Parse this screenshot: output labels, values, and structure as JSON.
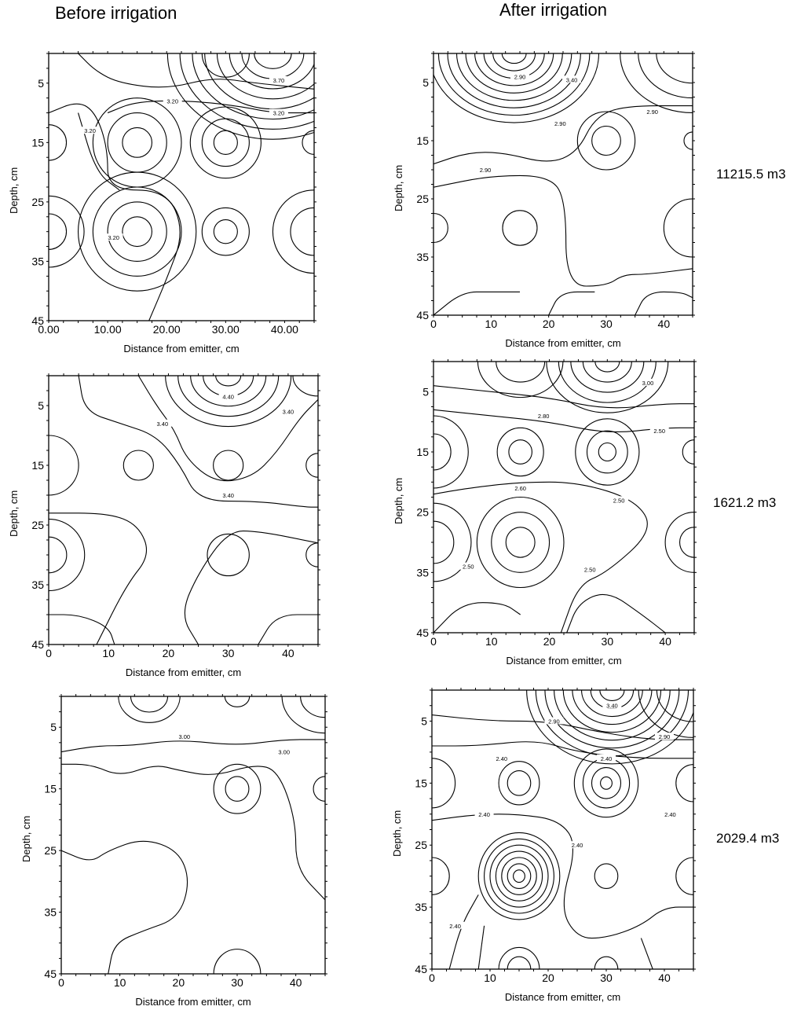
{
  "headers": {
    "before": "Before irrigation",
    "after": "After irrigation"
  },
  "row_labels": [
    "11215.5 m3",
    "1621.2 m3",
    "2029.4 m3"
  ],
  "chart_data": [
    {
      "type": "contour",
      "row": 0,
      "column": "before",
      "xlabel": "Distance from emitter, cm",
      "ylabel": "Depth, cm",
      "xlim": [
        0,
        45
      ],
      "ylim": [
        45,
        0
      ],
      "xticks": [
        "0.00",
        "10.00",
        "20.00",
        "30.00",
        "40.00"
      ],
      "xtick_values": [
        0,
        10,
        20,
        30,
        40
      ],
      "yticks": [
        "5",
        "15",
        "25",
        "35",
        "45"
      ],
      "ytick_values": [
        5,
        15,
        25,
        35,
        45
      ],
      "contour_labels": [
        {
          "text": "3.70",
          "x": 39,
          "y": 4.5
        },
        {
          "text": "3.20",
          "x": 21,
          "y": 8
        },
        {
          "text": "3.20",
          "x": 39,
          "y": 10
        },
        {
          "text": "3.20",
          "x": 7,
          "y": 13
        },
        {
          "text": "3.20",
          "x": 11,
          "y": 31
        }
      ]
    },
    {
      "type": "contour",
      "row": 0,
      "column": "after",
      "xlabel": "Distance from emitter, cm",
      "ylabel": "Depth, cm",
      "xlim": [
        0,
        45
      ],
      "ylim": [
        45,
        0
      ],
      "xticks": [
        "0",
        "10",
        "20",
        "30",
        "40"
      ],
      "xtick_values": [
        0,
        10,
        20,
        30,
        40
      ],
      "yticks": [
        "5",
        "15",
        "25",
        "35",
        "45"
      ],
      "ytick_values": [
        5,
        15,
        25,
        35,
        45
      ],
      "contour_labels": [
        {
          "text": "2.90",
          "x": 15,
          "y": 4
        },
        {
          "text": "3.40",
          "x": 24,
          "y": 4.5
        },
        {
          "text": "2.90",
          "x": 38,
          "y": 10
        },
        {
          "text": "2.90",
          "x": 22,
          "y": 12
        },
        {
          "text": "2.90",
          "x": 9,
          "y": 20
        }
      ]
    },
    {
      "type": "contour",
      "row": 1,
      "column": "before",
      "xlabel": "Distance from emitter, cm",
      "ylabel": "Depth, cm",
      "xlim": [
        0,
        45
      ],
      "ylim": [
        45,
        0
      ],
      "xticks": [
        "0",
        "10",
        "20",
        "30",
        "40"
      ],
      "xtick_values": [
        0,
        10,
        20,
        30,
        40
      ],
      "yticks": [
        "5",
        "15",
        "25",
        "35",
        "45"
      ],
      "ytick_values": [
        5,
        15,
        25,
        35,
        45
      ],
      "contour_labels": [
        {
          "text": "4.40",
          "x": 30,
          "y": 3.5
        },
        {
          "text": "3.40",
          "x": 40,
          "y": 6
        },
        {
          "text": "3.40",
          "x": 19,
          "y": 8
        },
        {
          "text": "3.40",
          "x": 30,
          "y": 20
        }
      ]
    },
    {
      "type": "contour",
      "row": 1,
      "column": "after",
      "xlabel": "Distance from emitter, cm",
      "ylabel": "Depth, cm",
      "xlim": [
        0,
        45
      ],
      "ylim": [
        45,
        0
      ],
      "xticks": [
        "0",
        "10",
        "20",
        "30",
        "40"
      ],
      "xtick_values": [
        0,
        10,
        20,
        30,
        40
      ],
      "yticks": [
        "5",
        "15",
        "25",
        "35",
        "45"
      ],
      "ytick_values": [
        5,
        15,
        25,
        35,
        45
      ],
      "contour_labels": [
        {
          "text": "3.00",
          "x": 37,
          "y": 3.5
        },
        {
          "text": "2.80",
          "x": 19,
          "y": 9
        },
        {
          "text": "2.50",
          "x": 39,
          "y": 11.5
        },
        {
          "text": "2.60",
          "x": 15,
          "y": 21
        },
        {
          "text": "2.50",
          "x": 32,
          "y": 23
        },
        {
          "text": "2.50",
          "x": 6,
          "y": 34
        },
        {
          "text": "2.50",
          "x": 27,
          "y": 34.5
        }
      ]
    },
    {
      "type": "contour",
      "row": 2,
      "column": "before",
      "xlabel": "Distance from emitter, cm",
      "ylabel": "Depth, cm",
      "xlim": [
        0,
        45
      ],
      "ylim": [
        45,
        0
      ],
      "xticks": [
        "0",
        "10",
        "20",
        "30",
        "40"
      ],
      "xtick_values": [
        0,
        10,
        20,
        30,
        40
      ],
      "yticks": [
        "5",
        "15",
        "25",
        "35",
        "45"
      ],
      "ytick_values": [
        5,
        15,
        25,
        35,
        45
      ],
      "contour_labels": [
        {
          "text": "3.00",
          "x": 21,
          "y": 6.5
        },
        {
          "text": "3.00",
          "x": 38,
          "y": 9
        }
      ]
    },
    {
      "type": "contour",
      "row": 2,
      "column": "after",
      "xlabel": "Distance from emitter, cm",
      "ylabel": "Depth, cm",
      "xlim": [
        0,
        45
      ],
      "ylim": [
        45,
        0
      ],
      "xticks": [
        "0",
        "10",
        "20",
        "30",
        "40"
      ],
      "xtick_values": [
        0,
        10,
        20,
        30,
        40
      ],
      "yticks": [
        "5",
        "15",
        "25",
        "35",
        "45"
      ],
      "ytick_values": [
        5,
        15,
        25,
        35,
        45
      ],
      "contour_labels": [
        {
          "text": "3.40",
          "x": 31,
          "y": 2.5
        },
        {
          "text": "2.90",
          "x": 21,
          "y": 5
        },
        {
          "text": "2.90",
          "x": 40,
          "y": 7.5
        },
        {
          "text": "2.40",
          "x": 12,
          "y": 11
        },
        {
          "text": "2.40",
          "x": 30,
          "y": 11
        },
        {
          "text": "2.40",
          "x": 41,
          "y": 20
        },
        {
          "text": "2.40",
          "x": 9,
          "y": 20
        },
        {
          "text": "2.40",
          "x": 25,
          "y": 25
        },
        {
          "text": "2.40",
          "x": 4,
          "y": 38
        }
      ]
    }
  ]
}
